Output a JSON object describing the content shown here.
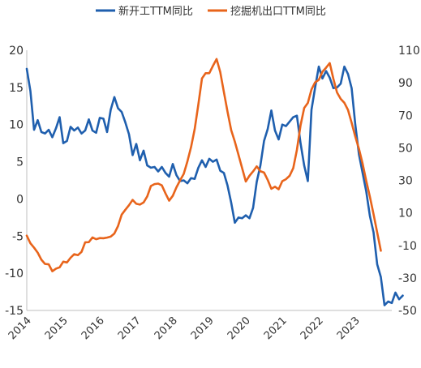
{
  "chart_data": {
    "type": "line",
    "title": "",
    "legend_position": "top",
    "grid": false,
    "x_tick_labels": [
      "2014",
      "2015",
      "2016",
      "2017",
      "2018",
      "2019",
      "2020",
      "2021",
      "2022",
      "2023"
    ],
    "x_range": [
      2014.0,
      2024.0
    ],
    "left_axis": {
      "label": "",
      "ticks": [
        20,
        15,
        10,
        5,
        0,
        -5,
        -10,
        -15
      ],
      "range": [
        -15,
        20
      ]
    },
    "right_axis": {
      "label": "",
      "ticks": [
        110,
        90,
        70,
        50,
        30,
        10,
        -10,
        -30,
        -50
      ],
      "range": [
        -50,
        110
      ]
    },
    "series": [
      {
        "name": "新开工TTM同比",
        "color": "#1f5fae",
        "axis": "left",
        "points": [
          [
            2014.0,
            17.5
          ],
          [
            2014.1,
            14.5
          ],
          [
            2014.2,
            9.3
          ],
          [
            2014.3,
            10.6
          ],
          [
            2014.4,
            9.0
          ],
          [
            2014.5,
            8.8
          ],
          [
            2014.6,
            9.3
          ],
          [
            2014.7,
            8.3
          ],
          [
            2014.8,
            9.5
          ],
          [
            2014.9,
            11.0
          ],
          [
            2015.0,
            7.5
          ],
          [
            2015.1,
            7.8
          ],
          [
            2015.2,
            9.7
          ],
          [
            2015.3,
            9.2
          ],
          [
            2015.4,
            9.6
          ],
          [
            2015.5,
            8.8
          ],
          [
            2015.6,
            9.2
          ],
          [
            2015.7,
            10.7
          ],
          [
            2015.8,
            9.2
          ],
          [
            2015.9,
            8.9
          ],
          [
            2016.0,
            10.9
          ],
          [
            2016.1,
            10.8
          ],
          [
            2016.2,
            9.0
          ],
          [
            2016.3,
            12.0
          ],
          [
            2016.4,
            13.7
          ],
          [
            2016.5,
            12.2
          ],
          [
            2016.6,
            11.7
          ],
          [
            2016.7,
            10.3
          ],
          [
            2016.8,
            8.7
          ],
          [
            2016.9,
            5.9
          ],
          [
            2017.0,
            7.4
          ],
          [
            2017.1,
            5.2
          ],
          [
            2017.2,
            6.5
          ],
          [
            2017.3,
            4.5
          ],
          [
            2017.4,
            4.2
          ],
          [
            2017.5,
            4.3
          ],
          [
            2017.6,
            3.7
          ],
          [
            2017.7,
            4.3
          ],
          [
            2017.8,
            3.5
          ],
          [
            2017.9,
            3.0
          ],
          [
            2018.0,
            4.7
          ],
          [
            2018.1,
            3.2
          ],
          [
            2018.2,
            2.4
          ],
          [
            2018.3,
            2.5
          ],
          [
            2018.4,
            2.1
          ],
          [
            2018.5,
            2.8
          ],
          [
            2018.6,
            2.7
          ],
          [
            2018.7,
            4.2
          ],
          [
            2018.8,
            5.2
          ],
          [
            2018.9,
            4.3
          ],
          [
            2019.0,
            5.4
          ],
          [
            2019.1,
            5.0
          ],
          [
            2019.2,
            5.3
          ],
          [
            2019.3,
            3.8
          ],
          [
            2019.4,
            3.5
          ],
          [
            2019.5,
            1.8
          ],
          [
            2019.6,
            -0.5
          ],
          [
            2019.7,
            -3.2
          ],
          [
            2019.8,
            -2.5
          ],
          [
            2019.9,
            -2.6
          ],
          [
            2020.0,
            -2.2
          ],
          [
            2020.1,
            -2.6
          ],
          [
            2020.2,
            -1.2
          ],
          [
            2020.3,
            2.3
          ],
          [
            2020.4,
            4.5
          ],
          [
            2020.5,
            7.8
          ],
          [
            2020.6,
            9.4
          ],
          [
            2020.7,
            11.9
          ],
          [
            2020.8,
            9.2
          ],
          [
            2020.9,
            8.0
          ],
          [
            2021.0,
            10.0
          ],
          [
            2021.1,
            9.8
          ],
          [
            2021.2,
            10.4
          ],
          [
            2021.3,
            11.0
          ],
          [
            2021.4,
            11.2
          ],
          [
            2021.5,
            7.5
          ],
          [
            2021.6,
            4.5
          ],
          [
            2021.7,
            2.4
          ],
          [
            2021.8,
            12.0
          ],
          [
            2021.9,
            15.0
          ],
          [
            2022.0,
            17.8
          ],
          [
            2022.1,
            16.2
          ],
          [
            2022.2,
            17.2
          ],
          [
            2022.3,
            16.3
          ],
          [
            2022.4,
            14.9
          ],
          [
            2022.5,
            15.0
          ],
          [
            2022.6,
            15.5
          ],
          [
            2022.7,
            17.8
          ],
          [
            2022.8,
            16.8
          ],
          [
            2022.9,
            14.9
          ],
          [
            2023.0,
            10.0
          ],
          [
            2023.1,
            6.0
          ],
          [
            2023.2,
            3.5
          ],
          [
            2023.3,
            1.0
          ],
          [
            2023.4,
            -2.3
          ],
          [
            2023.5,
            -4.5
          ],
          [
            2023.6,
            -8.8
          ],
          [
            2023.7,
            -10.5
          ],
          [
            2023.8,
            -14.3
          ],
          [
            2023.9,
            -13.8
          ],
          [
            2024.0,
            -14.0
          ],
          [
            2024.1,
            -12.6
          ],
          [
            2024.2,
            -13.5
          ],
          [
            2024.3,
            -13.0
          ]
        ]
      },
      {
        "name": "挖掘机出口TTM同比",
        "color": "#e8641b",
        "axis": "right",
        "points": [
          [
            2014.0,
            -4.0
          ],
          [
            2014.1,
            -8.7
          ],
          [
            2014.2,
            -11.4
          ],
          [
            2014.3,
            -14.5
          ],
          [
            2014.4,
            -18.8
          ],
          [
            2014.5,
            -21.4
          ],
          [
            2014.6,
            -21.6
          ],
          [
            2014.7,
            -25.9
          ],
          [
            2014.8,
            -24.3
          ],
          [
            2014.9,
            -23.5
          ],
          [
            2015.0,
            -20.0
          ],
          [
            2015.1,
            -20.5
          ],
          [
            2015.2,
            -17.6
          ],
          [
            2015.3,
            -15.4
          ],
          [
            2015.4,
            -16.0
          ],
          [
            2015.5,
            -14.0
          ],
          [
            2015.6,
            -8.1
          ],
          [
            2015.7,
            -8.0
          ],
          [
            2015.8,
            -5.1
          ],
          [
            2015.9,
            -6.2
          ],
          [
            2016.0,
            -5.5
          ],
          [
            2016.1,
            -5.6
          ],
          [
            2016.2,
            -5.2
          ],
          [
            2016.3,
            -4.6
          ],
          [
            2016.4,
            -2.7
          ],
          [
            2016.5,
            1.9
          ],
          [
            2016.6,
            8.9
          ],
          [
            2016.7,
            11.9
          ],
          [
            2016.8,
            14.7
          ],
          [
            2016.9,
            18.0
          ],
          [
            2017.0,
            15.6
          ],
          [
            2017.1,
            15.1
          ],
          [
            2017.2,
            16.4
          ],
          [
            2017.3,
            20.1
          ],
          [
            2017.4,
            26.5
          ],
          [
            2017.5,
            27.7
          ],
          [
            2017.6,
            28.0
          ],
          [
            2017.7,
            26.9
          ],
          [
            2017.8,
            22.0
          ],
          [
            2017.9,
            17.5
          ],
          [
            2018.0,
            20.5
          ],
          [
            2018.1,
            25.7
          ],
          [
            2018.2,
            30.0
          ],
          [
            2018.3,
            34.0
          ],
          [
            2018.4,
            41.6
          ],
          [
            2018.5,
            50.4
          ],
          [
            2018.6,
            61.5
          ],
          [
            2018.7,
            76.6
          ],
          [
            2018.8,
            92.7
          ],
          [
            2018.9,
            95.9
          ],
          [
            2019.0,
            95.9
          ],
          [
            2019.1,
            100.4
          ],
          [
            2019.2,
            104.6
          ],
          [
            2019.3,
            96.6
          ],
          [
            2019.4,
            84.3
          ],
          [
            2019.5,
            72.2
          ],
          [
            2019.6,
            60.9
          ],
          [
            2019.7,
            53.8
          ],
          [
            2019.8,
            45.7
          ],
          [
            2019.9,
            37.5
          ],
          [
            2020.0,
            29.3
          ],
          [
            2020.1,
            32.8
          ],
          [
            2020.2,
            35.5
          ],
          [
            2020.3,
            38.6
          ],
          [
            2020.4,
            35.6
          ],
          [
            2020.5,
            34.8
          ],
          [
            2020.6,
            30.3
          ],
          [
            2020.7,
            24.8
          ],
          [
            2020.8,
            26.1
          ],
          [
            2020.9,
            24.5
          ],
          [
            2021.0,
            29.5
          ],
          [
            2021.1,
            30.7
          ],
          [
            2021.2,
            32.8
          ],
          [
            2021.3,
            37.5
          ],
          [
            2021.4,
            48.7
          ],
          [
            2021.5,
            63.8
          ],
          [
            2021.6,
            74.5
          ],
          [
            2021.7,
            77.6
          ],
          [
            2021.8,
            85.9
          ],
          [
            2021.9,
            90.3
          ],
          [
            2022.0,
            91.8
          ],
          [
            2022.1,
            96.8
          ],
          [
            2022.2,
            99.3
          ],
          [
            2022.3,
            102.1
          ],
          [
            2022.4,
            92.4
          ],
          [
            2022.5,
            84.0
          ],
          [
            2022.6,
            80.1
          ],
          [
            2022.7,
            77.7
          ],
          [
            2022.8,
            73.3
          ],
          [
            2022.9,
            65.4
          ],
          [
            2023.0,
            56.9
          ],
          [
            2023.1,
            49.4
          ],
          [
            2023.2,
            40.3
          ],
          [
            2023.3,
            29.7
          ],
          [
            2023.4,
            19.9
          ],
          [
            2023.5,
            9.2
          ],
          [
            2023.6,
            -2.1
          ],
          [
            2023.7,
            -13.3
          ]
        ]
      }
    ]
  }
}
